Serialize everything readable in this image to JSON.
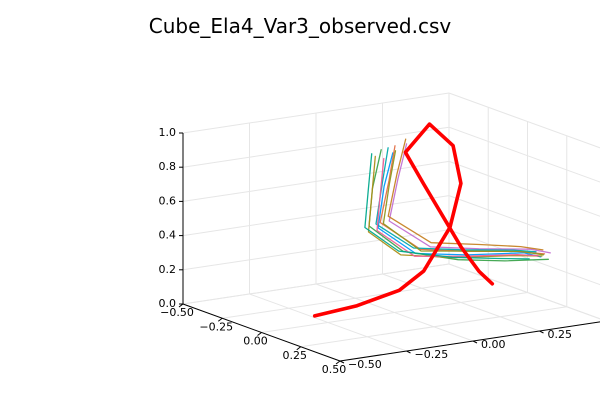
{
  "chart_data": {
    "type": "line",
    "title": "Cube_Ela4_Var3_observed.csv",
    "xlabel": "",
    "ylabel": "",
    "zlabel": "",
    "xlim": [
      -0.5,
      0.5
    ],
    "ylim": [
      -0.5,
      0.5
    ],
    "zlim": [
      0.0,
      1.0
    ],
    "x_ticks": [
      "−0.50",
      "−0.25",
      "0.00",
      "0.25",
      "0.50"
    ],
    "y_ticks": [
      "−0.50",
      "−0.25",
      "0.00",
      "0.25",
      "0.50"
    ],
    "z_ticks": [
      "0.0",
      "0.2",
      "0.4",
      "0.6",
      "0.8",
      "1.0"
    ],
    "grid": true,
    "legend": false,
    "reference_series": {
      "color": "#ff0000",
      "points": [
        [
          0.0,
          -0.3,
          0.05
        ],
        [
          0.1,
          -0.2,
          0.12
        ],
        [
          0.2,
          -0.1,
          0.22
        ],
        [
          0.22,
          -0.02,
          0.32
        ],
        [
          0.15,
          0.12,
          0.52
        ],
        [
          0.05,
          0.22,
          0.72
        ],
        [
          -0.05,
          0.25,
          0.9
        ],
        [
          -0.15,
          0.22,
          1.0
        ],
        [
          -0.1,
          0.1,
          0.88
        ],
        [
          -0.02,
          0.12,
          0.72
        ],
        [
          0.05,
          0.15,
          0.55
        ],
        [
          0.12,
          0.18,
          0.38
        ],
        [
          0.2,
          0.2,
          0.26
        ],
        [
          0.25,
          0.22,
          0.2
        ]
      ]
    },
    "series": [
      {
        "color": "#009af9",
        "points": [
          [
            -0.18,
            0.1,
            0.85
          ],
          [
            -0.1,
            0.02,
            0.7
          ],
          [
            -0.02,
            -0.05,
            0.5
          ],
          [
            0.05,
            0.05,
            0.35
          ],
          [
            0.12,
            0.2,
            0.33
          ],
          [
            0.18,
            0.38,
            0.32
          ],
          [
            0.22,
            0.42,
            0.3
          ]
        ]
      },
      {
        "color": "#e26f46",
        "points": [
          [
            -0.2,
            0.12,
            0.88
          ],
          [
            -0.12,
            0.05,
            0.72
          ],
          [
            -0.04,
            -0.03,
            0.52
          ],
          [
            0.03,
            0.08,
            0.36
          ],
          [
            0.1,
            0.22,
            0.34
          ],
          [
            0.17,
            0.36,
            0.33
          ],
          [
            0.21,
            0.44,
            0.31
          ]
        ]
      },
      {
        "color": "#3da44d",
        "points": [
          [
            -0.22,
            0.08,
            0.86
          ],
          [
            -0.14,
            0.0,
            0.68
          ],
          [
            -0.06,
            -0.06,
            0.5
          ],
          [
            0.02,
            0.02,
            0.36
          ],
          [
            0.1,
            0.18,
            0.3
          ],
          [
            0.16,
            0.32,
            0.28
          ],
          [
            0.2,
            0.46,
            0.27
          ]
        ]
      },
      {
        "color": "#c271d2",
        "points": [
          [
            -0.16,
            0.14,
            0.9
          ],
          [
            -0.08,
            0.06,
            0.74
          ],
          [
            0.0,
            -0.02,
            0.54
          ],
          [
            0.06,
            0.1,
            0.38
          ],
          [
            0.13,
            0.24,
            0.36
          ],
          [
            0.19,
            0.4,
            0.34
          ],
          [
            0.23,
            0.45,
            0.32
          ]
        ]
      },
      {
        "color": "#ac8e18",
        "points": [
          [
            -0.19,
            0.04,
            0.84
          ],
          [
            -0.11,
            -0.02,
            0.66
          ],
          [
            -0.03,
            -0.08,
            0.48
          ],
          [
            0.04,
            0.0,
            0.35
          ],
          [
            0.11,
            0.16,
            0.32
          ],
          [
            0.17,
            0.34,
            0.31
          ],
          [
            0.21,
            0.43,
            0.3
          ]
        ]
      },
      {
        "color": "#00a9ad",
        "points": [
          [
            -0.21,
            0.1,
            0.87
          ],
          [
            -0.13,
            0.03,
            0.7
          ],
          [
            -0.05,
            -0.04,
            0.51
          ],
          [
            0.02,
            0.06,
            0.37
          ],
          [
            0.09,
            0.2,
            0.35
          ],
          [
            0.15,
            0.36,
            0.33
          ],
          [
            0.19,
            0.42,
            0.32
          ]
        ]
      },
      {
        "color": "#ed5e93",
        "points": [
          [
            -0.17,
            0.06,
            0.83
          ],
          [
            -0.09,
            0.0,
            0.67
          ],
          [
            -0.01,
            -0.06,
            0.49
          ],
          [
            0.06,
            0.04,
            0.34
          ],
          [
            0.13,
            0.18,
            0.33
          ],
          [
            0.19,
            0.35,
            0.32
          ],
          [
            0.22,
            0.41,
            0.31
          ]
        ]
      },
      {
        "color": "#c68225",
        "points": [
          [
            -0.2,
            0.16,
            0.91
          ],
          [
            -0.12,
            0.08,
            0.75
          ],
          [
            -0.04,
            0.0,
            0.55
          ],
          [
            0.03,
            0.12,
            0.39
          ],
          [
            0.1,
            0.26,
            0.37
          ],
          [
            0.16,
            0.38,
            0.35
          ],
          [
            0.2,
            0.44,
            0.33
          ]
        ]
      },
      {
        "color": "#00a98d",
        "points": [
          [
            -0.23,
            0.05,
            0.84
          ],
          [
            -0.15,
            -0.01,
            0.67
          ],
          [
            -0.07,
            -0.07,
            0.49
          ],
          [
            0.01,
            0.01,
            0.36
          ],
          [
            0.08,
            0.17,
            0.31
          ],
          [
            0.14,
            0.31,
            0.29
          ],
          [
            0.18,
            0.4,
            0.28
          ]
        ]
      },
      {
        "color": "#8e971d",
        "points": [
          [
            -0.18,
            0.11,
            0.86
          ],
          [
            -0.1,
            0.04,
            0.71
          ],
          [
            -0.02,
            -0.03,
            0.52
          ],
          [
            0.05,
            0.07,
            0.36
          ],
          [
            0.12,
            0.21,
            0.35
          ],
          [
            0.18,
            0.37,
            0.33
          ],
          [
            0.22,
            0.43,
            0.31
          ]
        ]
      }
    ]
  }
}
